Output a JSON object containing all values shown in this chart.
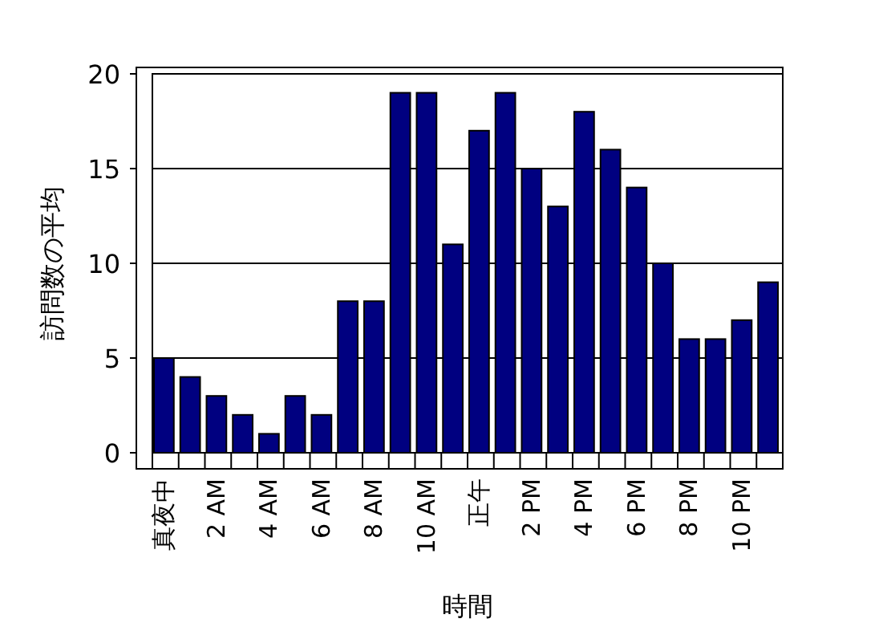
{
  "chart_data": {
    "type": "bar",
    "xlabel": "時間",
    "ylabel": "訪問数の平均",
    "categories": [
      "真夜中",
      null,
      "2 AM",
      null,
      "4 AM",
      null,
      "6 AM",
      null,
      "8 AM",
      null,
      "10 AM",
      null,
      "正午",
      null,
      "2 PM",
      null,
      "4 PM",
      null,
      "6 PM",
      null,
      "8 PM",
      null,
      "10 PM",
      null
    ],
    "values": [
      5,
      4,
      3,
      2,
      1,
      3,
      2,
      8,
      8,
      19,
      19,
      11,
      17,
      19,
      15,
      13,
      18,
      16,
      14,
      10,
      6,
      6,
      7,
      9
    ],
    "color": "#000080",
    "ylim": [
      0,
      20
    ],
    "yticks": [
      0,
      5,
      10,
      15,
      20
    ],
    "grid": "y"
  }
}
